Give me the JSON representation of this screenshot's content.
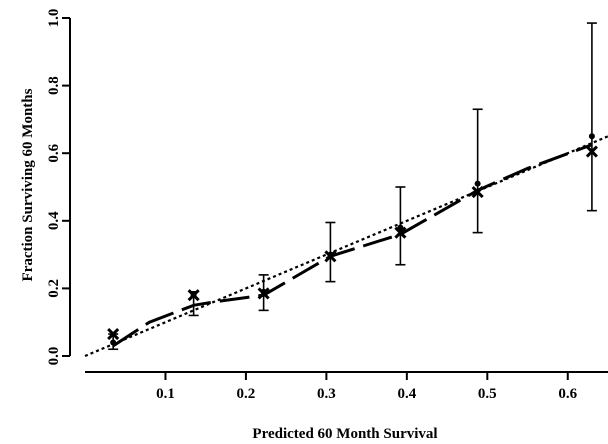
{
  "chart_data": {
    "type": "scatter",
    "title": "",
    "xlabel": "Predicted  60 Month Survival",
    "ylabel": "Fraction Surviving 60 Months",
    "xlim": [
      0.0,
      0.65
    ],
    "ylim": [
      0.0,
      1.0
    ],
    "x_ticks": [
      0.1,
      0.2,
      0.3,
      0.4,
      0.5,
      0.6
    ],
    "y_ticks": [
      0.0,
      0.2,
      0.4,
      0.6,
      0.8,
      1.0
    ],
    "x_tick_labels": [
      "0.1",
      "0.2",
      "0.3",
      "0.4",
      "0.5",
      "0.6"
    ],
    "y_tick_labels": [
      "0.0",
      "0.2",
      "0.4",
      "0.6",
      "0.8",
      "1.0"
    ],
    "grid": false,
    "legend": null,
    "series": [
      {
        "kind": "observed_with_error_bars",
        "x": [
          0.035,
          0.135,
          0.222,
          0.305,
          0.392,
          0.488,
          0.63
        ],
        "y": [
          0.04,
          0.18,
          0.19,
          0.3,
          0.38,
          0.51,
          0.65
        ],
        "y_low": [
          0.02,
          0.12,
          0.135,
          0.22,
          0.27,
          0.365,
          0.43
        ],
        "y_high": [
          0.065,
          0.19,
          0.24,
          0.395,
          0.5,
          0.73,
          0.985
        ]
      },
      {
        "kind": "predicted_marker_x",
        "x": [
          0.035,
          0.135,
          0.222,
          0.305,
          0.392,
          0.488,
          0.63
        ],
        "y": [
          0.065,
          0.18,
          0.185,
          0.295,
          0.365,
          0.485,
          0.605
        ]
      },
      {
        "kind": "smoothed_calibration_long_dash",
        "x": [
          0.035,
          0.08,
          0.135,
          0.16,
          0.222,
          0.305,
          0.392,
          0.488,
          0.55,
          0.63
        ],
        "y": [
          0.03,
          0.1,
          0.15,
          0.16,
          0.18,
          0.295,
          0.36,
          0.49,
          0.555,
          0.625
        ]
      },
      {
        "kind": "ideal_line_dotted",
        "x": [
          0.0,
          0.65
        ],
        "y": [
          0.0,
          0.65
        ]
      }
    ]
  }
}
